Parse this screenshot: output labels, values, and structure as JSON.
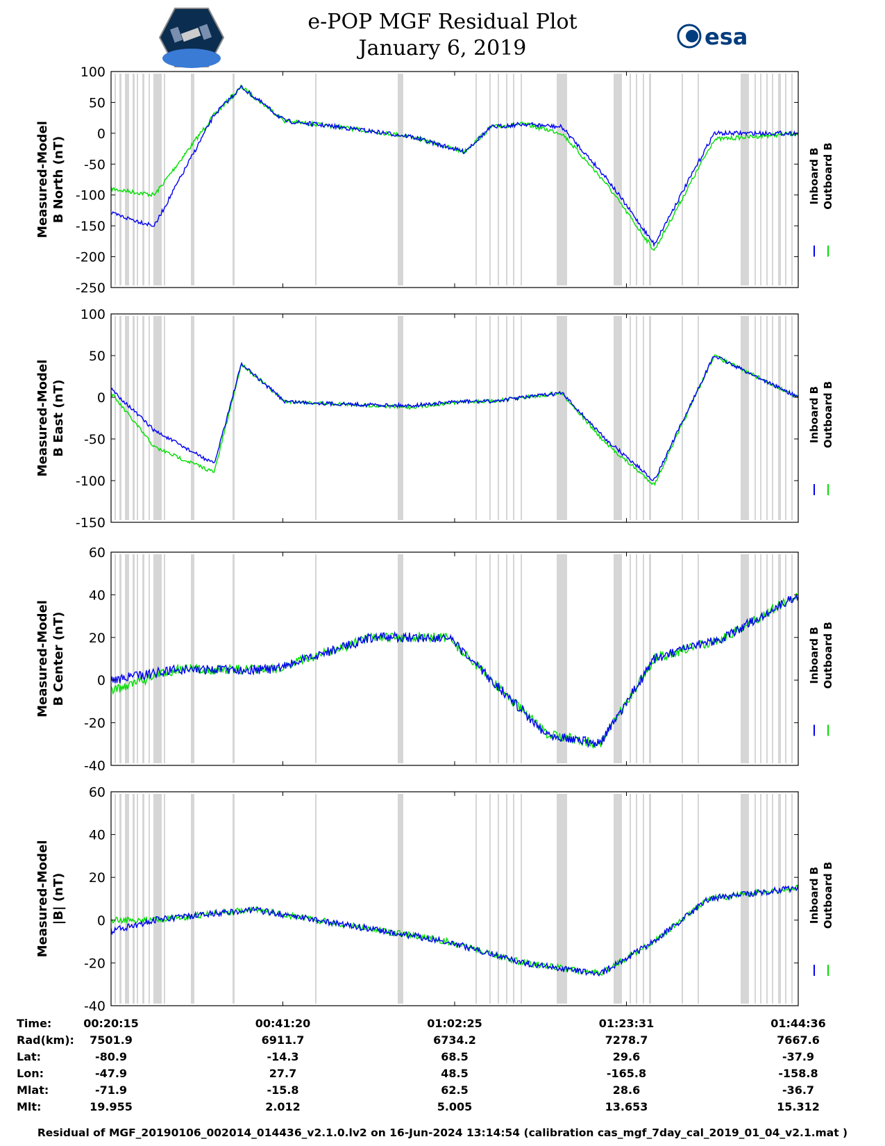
{
  "header": {
    "title_line1": "e-POP MGF Residual Plot",
    "title_line2": "January 6, 2019",
    "left_logo": "cassiope-satellite-logo",
    "right_logo_text": "esa"
  },
  "colors": {
    "inboard": "#0000ee",
    "outboard": "#00dd00",
    "gap_band": "#d6d6d6",
    "logo_badge": "#0b2d4f",
    "esa_blue": "#003c7e"
  },
  "legend": {
    "inboard": "Inboard B",
    "outboard": "Outboard B"
  },
  "chart_data": [
    {
      "type": "line",
      "ylabel_line1": "Measured-Model",
      "ylabel_line2": "B North (nT)",
      "ylim": [
        -250,
        100
      ],
      "yticks": [
        "100",
        "50",
        "0",
        "-50",
        "-100",
        "-150",
        "-200",
        "-250"
      ],
      "x": [
        0,
        80,
        190,
        240,
        320,
        420,
        550,
        650,
        700,
        760,
        830,
        910,
        1000,
        1110,
        1265
      ],
      "series": [
        {
          "name": "Inboard B",
          "values": [
            -130,
            -150,
            30,
            75,
            20,
            10,
            -5,
            -30,
            10,
            15,
            10,
            -70,
            -180,
            0,
            0
          ]
        },
        {
          "name": "Outboard B",
          "values": [
            -90,
            -100,
            30,
            75,
            20,
            10,
            -5,
            -30,
            10,
            15,
            0,
            -80,
            -190,
            -10,
            0
          ]
        }
      ]
    },
    {
      "type": "line",
      "ylabel_line1": "Measured-Model",
      "ylabel_line2": "B East (nT)",
      "ylim": [
        -150,
        100
      ],
      "yticks": [
        "100",
        "50",
        "0",
        "-50",
        "-100",
        "-150"
      ],
      "x": [
        0,
        80,
        190,
        240,
        320,
        420,
        550,
        650,
        700,
        760,
        830,
        910,
        1000,
        1110,
        1265
      ],
      "series": [
        {
          "name": "Inboard B",
          "values": [
            10,
            -40,
            -80,
            40,
            -5,
            -8,
            -10,
            -5,
            -5,
            0,
            5,
            -50,
            -100,
            50,
            0
          ]
        },
        {
          "name": "Outboard B",
          "values": [
            5,
            -60,
            -90,
            40,
            -5,
            -8,
            -12,
            -5,
            -5,
            0,
            5,
            -55,
            -105,
            50,
            0
          ]
        }
      ]
    },
    {
      "type": "line",
      "ylabel_line1": "Measured-Model",
      "ylabel_line2": "B Center (nT)",
      "ylim": [
        -40,
        60
      ],
      "yticks": [
        "60",
        "40",
        "20",
        "0",
        "-20",
        "-40"
      ],
      "x": [
        0,
        120,
        300,
        480,
        620,
        800,
        900,
        1000,
        1130,
        1265
      ],
      "series": [
        {
          "name": "Inboard B",
          "values": [
            0,
            5,
            5,
            20,
            20,
            -25,
            -30,
            10,
            20,
            40
          ]
        },
        {
          "name": "Outboard B",
          "values": [
            -5,
            5,
            5,
            20,
            20,
            -25,
            -30,
            10,
            20,
            40
          ]
        }
      ]
    },
    {
      "type": "line",
      "ylabel_line1": "Measured-Model",
      "ylabel_line2": "|B| (nT)",
      "ylim": [
        -40,
        60
      ],
      "yticks": [
        "60",
        "40",
        "20",
        "0",
        "-20",
        "-40"
      ],
      "x": [
        0,
        80,
        260,
        500,
        620,
        760,
        900,
        1000,
        1100,
        1265
      ],
      "series": [
        {
          "name": "Inboard B",
          "values": [
            -5,
            0,
            5,
            -5,
            -10,
            -20,
            -25,
            -10,
            10,
            15
          ]
        },
        {
          "name": "Outboard B",
          "values": [
            0,
            0,
            5,
            -5,
            -10,
            -20,
            -25,
            -10,
            10,
            15
          ]
        }
      ]
    }
  ],
  "info_table": {
    "labels": [
      "Time:",
      "Rad(km):",
      "Lat:",
      "Lon:",
      "Mlat:",
      "Mlt:"
    ],
    "columns": [
      [
        "00:20:15",
        "7501.9",
        "-80.9",
        "-47.9",
        "-71.9",
        "19.955"
      ],
      [
        "00:41:20",
        "6911.7",
        "-14.3",
        "27.7",
        "-15.8",
        "2.012"
      ],
      [
        "01:02:25",
        "6734.2",
        "68.5",
        "48.5",
        "62.5",
        "5.005"
      ],
      [
        "01:23:31",
        "7278.7",
        "29.6",
        "-165.8",
        "28.6",
        "13.653"
      ],
      [
        "01:44:36",
        "7667.6",
        "-37.9",
        "-158.8",
        "-36.7",
        "15.312"
      ]
    ]
  },
  "footer": "Residual of MGF_20190106_002014_014436_v2.1.0.lv2 on 16-Jun-2024 13:14:54 (calibration cas_mgf_7day_cal_2019_01_04_v2.1.mat )"
}
